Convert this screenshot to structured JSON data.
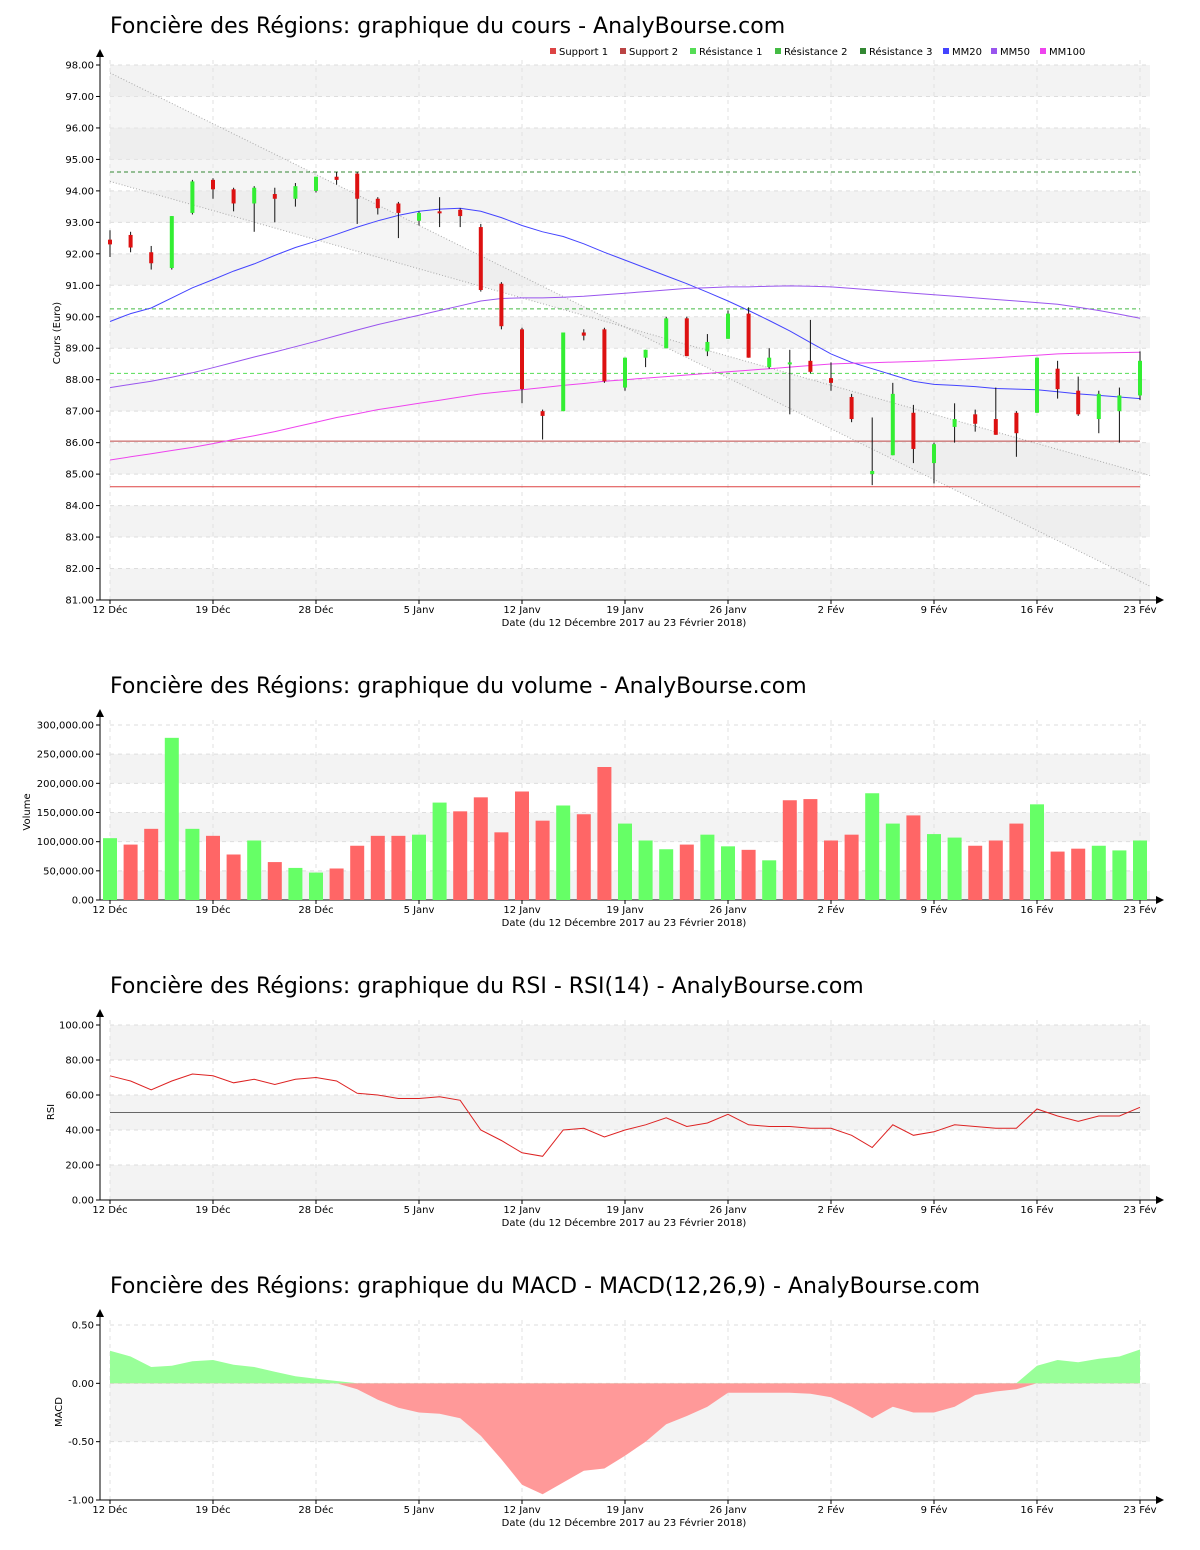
{
  "colors": {
    "up": "#33ee33",
    "down": "#dd1111",
    "vol_up": "#66ff66",
    "vol_down": "#ff6666",
    "support1": "#dd4444",
    "support2": "#bb4444",
    "res1": "#55dd55",
    "res2": "#44bb44",
    "res3": "#338833",
    "mm20": "#4444ff",
    "mm50": "#9955ee",
    "mm100": "#ee44ee",
    "rsi": "#dd2222",
    "macd_pos": "#99ff99",
    "macd_neg": "#ff9999",
    "band": "#f3f3f3"
  },
  "x_ticks": [
    "12 Déc",
    "19 Déc",
    "28 Déc",
    "5 Janv",
    "12 Janv",
    "19 Janv",
    "26 Janv",
    "2 Fév",
    "9 Fév",
    "16 Fév",
    "23 Fév"
  ],
  "x_label": "Date (du 12 Décembre 2017 au 23 Février 2018)",
  "chart_data": [
    {
      "type": "candlestick",
      "title": "Foncière des Régions: graphique du cours - AnalyBourse.com",
      "ylabel": "Cours (Euro)",
      "xlabel": "Date (du 12 Décembre 2017 au 23 Février 2018)",
      "ylim": [
        81,
        98
      ],
      "yticks": [
        "81.00",
        "82.00",
        "83.00",
        "84.00",
        "85.00",
        "86.00",
        "87.00",
        "88.00",
        "89.00",
        "90.00",
        "91.00",
        "92.00",
        "93.00",
        "94.00",
        "95.00",
        "96.00",
        "97.00",
        "98.00"
      ],
      "legend": [
        "Support 1",
        "Support 2",
        "Résistance 1",
        "Résistance 2",
        "Résistance 3",
        "MM20",
        "MM50",
        "MM100"
      ],
      "legend_position": "top-right",
      "support": [
        84.6,
        86.05
      ],
      "resistance": [
        88.2,
        90.25,
        94.6
      ],
      "ohlc": [
        [
          92.45,
          92.75,
          91.9,
          92.3
        ],
        [
          92.6,
          92.7,
          92.05,
          92.2
        ],
        [
          92.05,
          92.25,
          91.5,
          91.7
        ],
        [
          91.55,
          93.2,
          91.5,
          93.2
        ],
        [
          93.3,
          94.35,
          93.25,
          94.3
        ],
        [
          94.35,
          94.4,
          93.75,
          94.05
        ],
        [
          94.05,
          94.1,
          93.35,
          93.6
        ],
        [
          93.6,
          94.15,
          92.7,
          94.1
        ],
        [
          93.9,
          94.1,
          93.0,
          93.75
        ],
        [
          93.75,
          94.25,
          93.5,
          94.15
        ],
        [
          94.0,
          94.45,
          93.95,
          94.45
        ],
        [
          94.45,
          94.6,
          94.2,
          94.35
        ],
        [
          94.55,
          94.6,
          92.95,
          93.75
        ],
        [
          93.75,
          93.8,
          93.25,
          93.45
        ],
        [
          93.6,
          93.65,
          92.5,
          93.3
        ],
        [
          93.05,
          93.35,
          92.9,
          93.3
        ],
        [
          93.35,
          93.8,
          92.85,
          93.3
        ],
        [
          93.4,
          93.45,
          92.85,
          93.2
        ],
        [
          92.85,
          92.95,
          90.8,
          90.85
        ],
        [
          91.05,
          91.1,
          89.6,
          89.7
        ],
        [
          89.6,
          89.65,
          87.25,
          87.7
        ],
        [
          87.0,
          87.05,
          86.1,
          86.85
        ],
        [
          87.0,
          89.5,
          87.0,
          89.5
        ],
        [
          89.5,
          89.6,
          89.25,
          89.4
        ],
        [
          89.6,
          89.65,
          87.9,
          87.95
        ],
        [
          87.75,
          88.7,
          87.65,
          88.7
        ],
        [
          88.7,
          88.95,
          88.4,
          88.95
        ],
        [
          89.0,
          90.0,
          89.0,
          89.95
        ],
        [
          89.95,
          90.0,
          88.75,
          88.75
        ],
        [
          88.9,
          89.45,
          88.75,
          89.2
        ],
        [
          89.3,
          90.2,
          89.3,
          90.1
        ],
        [
          90.1,
          90.3,
          88.7,
          88.7
        ],
        [
          88.4,
          89.0,
          88.35,
          88.7
        ],
        [
          88.5,
          88.95,
          86.9,
          88.55
        ],
        [
          88.6,
          89.9,
          88.2,
          88.25
        ],
        [
          88.05,
          88.55,
          87.65,
          87.9
        ],
        [
          87.45,
          87.55,
          86.65,
          86.75
        ],
        [
          85.0,
          86.8,
          84.65,
          85.1
        ],
        [
          85.6,
          87.9,
          85.6,
          87.55
        ],
        [
          86.95,
          87.2,
          85.35,
          85.8
        ],
        [
          85.35,
          86.0,
          84.7,
          85.95
        ],
        [
          86.5,
          87.25,
          86.0,
          86.75
        ],
        [
          86.9,
          87.05,
          86.35,
          86.6
        ],
        [
          86.75,
          87.75,
          86.25,
          86.25
        ],
        [
          86.95,
          87.0,
          85.55,
          86.3
        ],
        [
          86.95,
          88.7,
          86.95,
          88.7
        ],
        [
          88.35,
          88.6,
          87.4,
          87.7
        ],
        [
          87.65,
          88.1,
          86.85,
          86.9
        ],
        [
          86.75,
          87.65,
          86.3,
          87.55
        ],
        [
          87.0,
          87.75,
          86.0,
          87.5
        ],
        [
          87.5,
          88.9,
          87.35,
          88.6
        ]
      ],
      "series": [
        {
          "name": "MM20",
          "values": [
            89.85,
            90.1,
            90.28,
            90.6,
            90.92,
            91.18,
            91.45,
            91.68,
            91.95,
            92.2,
            92.4,
            92.62,
            92.85,
            93.05,
            93.22,
            93.35,
            93.42,
            93.45,
            93.35,
            93.15,
            92.9,
            92.7,
            92.55,
            92.32,
            92.05,
            91.8,
            91.55,
            91.3,
            91.05,
            90.78,
            90.5,
            90.2,
            89.88,
            89.55,
            89.18,
            88.82,
            88.55,
            88.35,
            88.15,
            87.95,
            87.85,
            87.82,
            87.78,
            87.72,
            87.7,
            87.68,
            87.62,
            87.55,
            87.5,
            87.45,
            87.4
          ]
        },
        {
          "name": "MM50",
          "values": [
            87.75,
            87.85,
            87.95,
            88.08,
            88.22,
            88.38,
            88.55,
            88.72,
            88.88,
            89.05,
            89.22,
            89.4,
            89.58,
            89.75,
            89.9,
            90.05,
            90.2,
            90.35,
            90.5,
            90.58,
            90.6,
            90.6,
            90.62,
            90.65,
            90.7,
            90.75,
            90.8,
            90.85,
            90.9,
            90.92,
            90.95,
            90.95,
            90.97,
            90.98,
            90.97,
            90.95,
            90.9,
            90.85,
            90.8,
            90.75,
            90.7,
            90.65,
            90.6,
            90.55,
            90.5,
            90.45,
            90.4,
            90.3,
            90.2,
            90.08,
            89.95
          ]
        },
        {
          "name": "MM100",
          "values": [
            85.45,
            85.55,
            85.65,
            85.75,
            85.85,
            85.97,
            86.1,
            86.22,
            86.35,
            86.5,
            86.65,
            86.8,
            86.92,
            87.05,
            87.15,
            87.25,
            87.35,
            87.45,
            87.55,
            87.62,
            87.68,
            87.75,
            87.82,
            87.88,
            87.95,
            88.0,
            88.05,
            88.1,
            88.15,
            88.2,
            88.25,
            88.3,
            88.35,
            88.4,
            88.45,
            88.5,
            88.52,
            88.54,
            88.56,
            88.58,
            88.6,
            88.63,
            88.66,
            88.7,
            88.74,
            88.78,
            88.82,
            88.84,
            88.85,
            88.86,
            88.87
          ]
        }
      ],
      "channel": [
        [
          97.75,
          81.6
        ],
        [
          94.3,
          85.05
        ]
      ]
    },
    {
      "type": "bar",
      "title": "Foncière des Régions: graphique du volume - AnalyBourse.com",
      "ylabel": "Volume",
      "xlabel": "Date (du 12 Décembre 2017 au 23 Février 2018)",
      "ylim": [
        0,
        300000
      ],
      "yticks": [
        "0.00",
        "50,000.00",
        "100,000.00",
        "150,000.00",
        "200,000.00",
        "250,000.00",
        "300,000.00"
      ],
      "values": [
        106000,
        95000,
        122000,
        278000,
        122000,
        110000,
        78000,
        102000,
        65000,
        55000,
        47000,
        54000,
        93000,
        110000,
        110000,
        112000,
        167000,
        152000,
        176000,
        116000,
        186000,
        136000,
        162000,
        147000,
        228000,
        131000,
        102000,
        87000,
        95000,
        112000,
        92000,
        86000,
        68000,
        171000,
        173000,
        102000,
        112000,
        183000,
        131000,
        145000,
        113000,
        107000,
        93000,
        102000,
        131000,
        164000,
        83000,
        88000,
        93000,
        85000,
        102000
      ],
      "up": [
        1,
        0,
        0,
        1,
        1,
        0,
        0,
        1,
        0,
        1,
        1,
        0,
        0,
        0,
        0,
        1,
        1,
        0,
        0,
        0,
        0,
        0,
        1,
        0,
        0,
        1,
        1,
        1,
        0,
        1,
        1,
        0,
        1,
        0,
        0,
        0,
        0,
        1,
        1,
        0,
        1,
        1,
        0,
        0,
        0,
        1,
        0,
        0,
        1,
        1,
        1
      ]
    },
    {
      "type": "line",
      "title": "Foncière des Régions: graphique du RSI - RSI(14) - AnalyBourse.com",
      "ylabel": "RSI",
      "xlabel": "Date (du 12 Décembre 2017 au 23 Février 2018)",
      "ylim": [
        0,
        100
      ],
      "yticks": [
        "0.00",
        "20.00",
        "40.00",
        "60.00",
        "80.00",
        "100.00"
      ],
      "reference": 50,
      "series": [
        {
          "name": "RSI(14)",
          "values": [
            71,
            68,
            63,
            68,
            72,
            71,
            67,
            69,
            66,
            69,
            70,
            68,
            61,
            60,
            58,
            58,
            59,
            57,
            40,
            34,
            27,
            25,
            40,
            41,
            36,
            40,
            43,
            47,
            42,
            44,
            49,
            43,
            42,
            42,
            41,
            41,
            37,
            30,
            43,
            37,
            39,
            43,
            42,
            41,
            41,
            52,
            48,
            45,
            48,
            48,
            53
          ]
        }
      ]
    },
    {
      "type": "area",
      "title": "Foncière des Régions: graphique du MACD - MACD(12,26,9) - AnalyBourse.com",
      "ylabel": "MACD",
      "xlabel": "Date (du 12 Décembre 2017 au 23 Février 2018)",
      "ylim": [
        -1.0,
        0.5
      ],
      "yticks": [
        "-1.00",
        "-0.50",
        "0.00",
        "0.50"
      ],
      "series": [
        {
          "name": "MACD(12,26,9)",
          "values": [
            0.28,
            0.23,
            0.14,
            0.15,
            0.19,
            0.2,
            0.16,
            0.14,
            0.1,
            0.06,
            0.04,
            0.02,
            -0.05,
            -0.14,
            -0.21,
            -0.25,
            -0.26,
            -0.3,
            -0.45,
            -0.65,
            -0.87,
            -0.95,
            -0.85,
            -0.75,
            -0.73,
            -0.62,
            -0.5,
            -0.35,
            -0.28,
            -0.2,
            -0.08,
            -0.08,
            -0.08,
            -0.08,
            -0.09,
            -0.12,
            -0.2,
            -0.3,
            -0.2,
            -0.25,
            -0.25,
            -0.2,
            -0.1,
            -0.07,
            -0.05,
            0.15,
            0.2,
            0.18,
            0.21,
            0.23,
            0.29
          ]
        }
      ]
    }
  ]
}
